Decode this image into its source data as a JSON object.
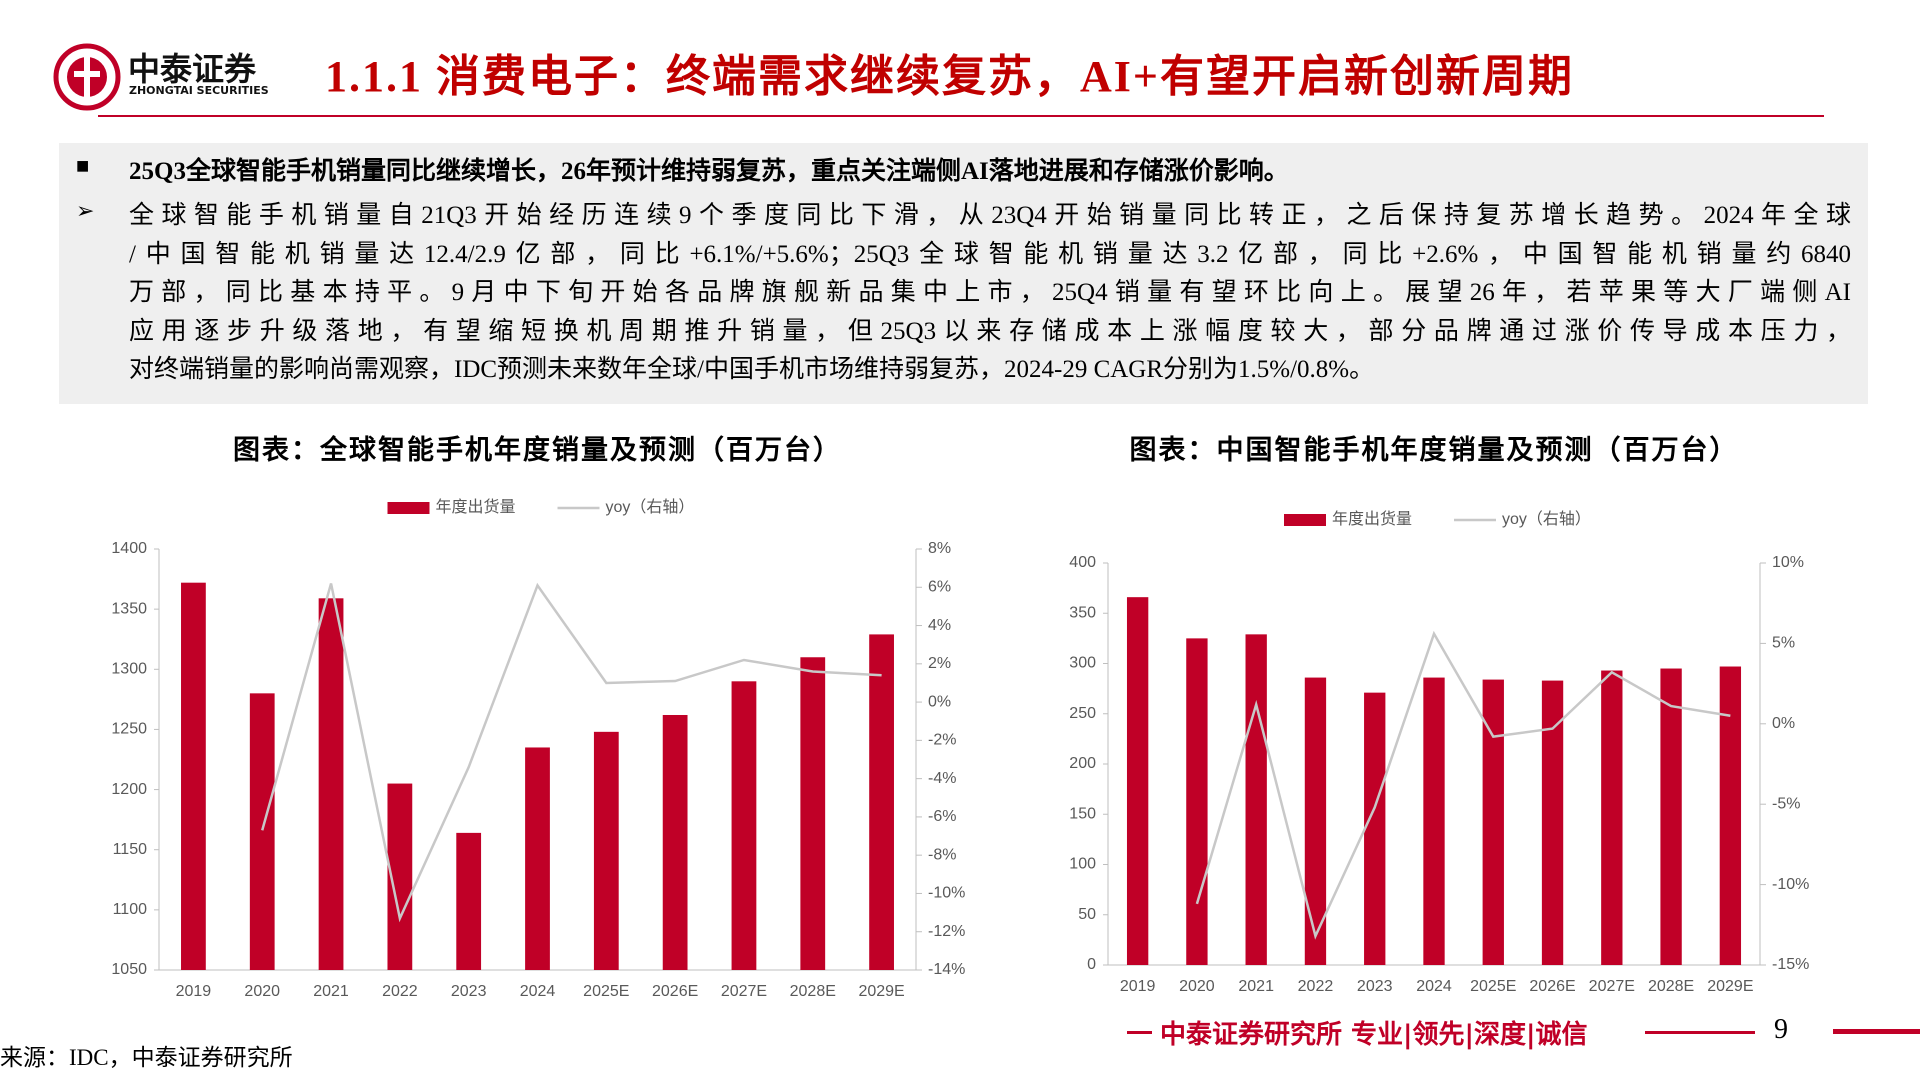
{
  "header": {
    "logo_cn": "中泰证券",
    "logo_en": "ZHONGTAI SECURITIES",
    "title": "1.1.1 消费电子：终端需求继续复苏，AI+有望开启新创新周期"
  },
  "summary": {
    "headline": "25Q3全球智能手机销量同比继续增长，26年预计维持弱复苏，重点关注端侧AI落地进展和存储涨价影响。",
    "lines": [
      "全球智能手机销量自21Q3开始经历连续9个季度同比下滑，从23Q4开始销量同比转正，之后保持复苏增长趋势。2024年全球",
      "/中国智能机销量达12.4/2.9亿部，同比+6.1%/+5.6%；25Q3全球智能机销量达3.2亿部，同比+2.6%，中国智能机销量约6840",
      "万部，同比基本持平。9月中下旬开始各品牌旗舰新品集中上市，25Q4销量有望环比向上。展望26年，若苹果等大厂端侧AI",
      "应用逐步升级落地，有望缩短换机周期推升销量，但25Q3以来存储成本上涨幅度较大，部分品牌通过涨价传导成本压力，",
      "对终端销量的影响尚需观察，IDC预测未来数年全球/中国手机市场维持弱复苏，2024-29 CAGR分别为1.5%/0.8%。"
    ]
  },
  "chart_data": [
    {
      "type": "combo",
      "title": "图表：全球智能手机年度销量及预测（百万台）",
      "categories": [
        "2019",
        "2020",
        "2021",
        "2022",
        "2023",
        "2024",
        "2025E",
        "2026E",
        "2027E",
        "2028E",
        "2029E"
      ],
      "series": [
        {
          "name": "年度出货量",
          "type": "bar",
          "color": "#c00027",
          "values": [
            1372,
            1280,
            1359,
            1205,
            1164,
            1235,
            1248,
            1262,
            1290,
            1310,
            1329
          ]
        },
        {
          "name": "yoy（右轴）",
          "type": "line",
          "axis": "y2",
          "color": "#c8c8c8",
          "values": [
            null,
            -6.7,
            6.2,
            -11.3,
            -3.4,
            6.1,
            1.0,
            1.1,
            2.2,
            1.6,
            1.4
          ]
        }
      ],
      "ylim": [
        1050,
        1400
      ],
      "yticks": [
        1050,
        1100,
        1150,
        1200,
        1250,
        1300,
        1350,
        1400
      ],
      "y2lim": [
        -14,
        8
      ],
      "y2ticks": [
        {
          "value": -14,
          "label": "-14%"
        },
        {
          "value": -12,
          "label": "-12%"
        },
        {
          "value": -10,
          "label": "-10%"
        },
        {
          "value": -8,
          "label": "-8%"
        },
        {
          "value": -6,
          "label": "-6%"
        },
        {
          "value": -4,
          "label": "-4%"
        },
        {
          "value": -2,
          "label": "-2%"
        },
        {
          "value": 0,
          "label": "0%"
        },
        {
          "value": 2,
          "label": "2%"
        },
        {
          "value": 4,
          "label": "4%"
        },
        {
          "value": 6,
          "label": "6%"
        },
        {
          "value": 8,
          "label": "8%"
        }
      ]
    },
    {
      "type": "combo",
      "title": "图表：中国智能手机年度销量及预测（百万台）",
      "categories": [
        "2019",
        "2020",
        "2021",
        "2022",
        "2023",
        "2024",
        "2025E",
        "2026E",
        "2027E",
        "2028E",
        "2029E"
      ],
      "series": [
        {
          "name": "年度出货量",
          "type": "bar",
          "color": "#c00027",
          "values": [
            366,
            325,
            329,
            286,
            271,
            286,
            284,
            283,
            293,
            295,
            297
          ]
        },
        {
          "name": "yoy（右轴）",
          "type": "line",
          "axis": "y2",
          "color": "#c8c8c8",
          "values": [
            null,
            -11.2,
            1.2,
            -13.2,
            -5.2,
            5.6,
            -0.8,
            -0.3,
            3.2,
            1.1,
            0.5
          ]
        }
      ],
      "ylim": [
        0,
        400
      ],
      "yticks": [
        0,
        50,
        100,
        150,
        200,
        250,
        300,
        350,
        400
      ],
      "y2lim": [
        -15,
        10
      ],
      "y2ticks": [
        {
          "value": -15,
          "label": "-15%"
        },
        {
          "value": -10,
          "label": "-10%"
        },
        {
          "value": -5,
          "label": "-5%"
        },
        {
          "value": 0,
          "label": "0%"
        },
        {
          "value": 5,
          "label": "5%"
        },
        {
          "value": 10,
          "label": "10%"
        }
      ]
    }
  ],
  "footer": {
    "source": "来源：IDC，中泰证券研究所",
    "slogan": "中泰证券研究所 专业|领先|深度|诚信",
    "page": "9"
  }
}
